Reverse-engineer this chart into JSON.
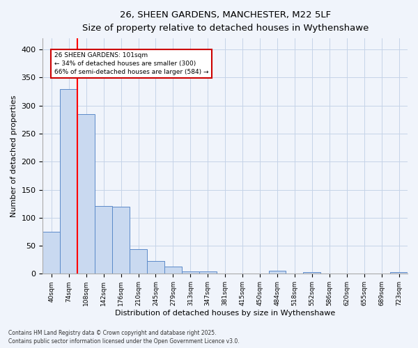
{
  "title_line1": "26, SHEEN GARDENS, MANCHESTER, M22 5LF",
  "title_line2": "Size of property relative to detached houses in Wythenshawe",
  "xlabel": "Distribution of detached houses by size in Wythenshawe",
  "ylabel": "Number of detached properties",
  "bar_labels": [
    "40sqm",
    "74sqm",
    "108sqm",
    "142sqm",
    "176sqm",
    "210sqm",
    "245sqm",
    "279sqm",
    "313sqm",
    "347sqm",
    "381sqm",
    "415sqm",
    "450sqm",
    "484sqm",
    "518sqm",
    "552sqm",
    "586sqm",
    "620sqm",
    "655sqm",
    "689sqm",
    "723sqm"
  ],
  "bar_values": [
    75,
    330,
    285,
    121,
    120,
    44,
    23,
    13,
    4,
    4,
    0,
    0,
    0,
    5,
    0,
    3,
    0,
    0,
    0,
    0,
    3
  ],
  "bar_color": "#c9d9f0",
  "bar_edge_color": "#5b8ac9",
  "annotation_text": "26 SHEEN GARDENS: 101sqm\n← 34% of detached houses are smaller (300)\n66% of semi-detached houses are larger (584) →",
  "annotation_box_color": "#ffffff",
  "annotation_box_edge": "#cc0000",
  "footnote_line1": "Contains HM Land Registry data © Crown copyright and database right 2025.",
  "footnote_line2": "Contains public sector information licensed under the Open Government Licence v3.0.",
  "background_color": "#f0f4fb",
  "grid_color": "#c5d3e8",
  "ylim": [
    0,
    420
  ],
  "yticks": [
    0,
    50,
    100,
    150,
    200,
    250,
    300,
    350,
    400
  ]
}
